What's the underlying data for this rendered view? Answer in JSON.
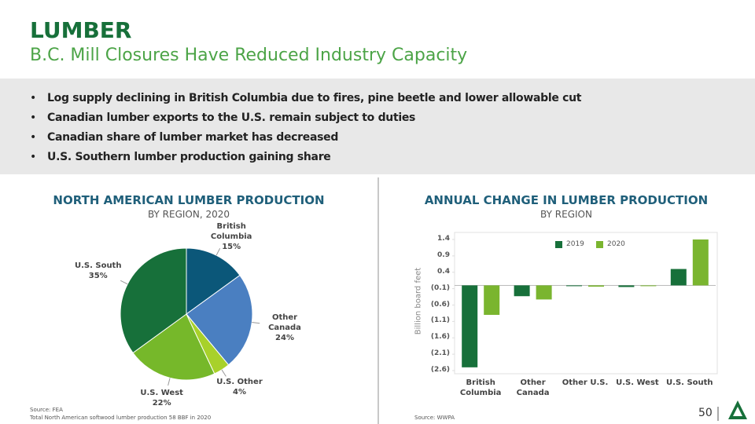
{
  "header": {
    "title": "LUMBER",
    "subtitle": "B.C. Mill Closures Have Reduced Industry Capacity",
    "bullets": [
      "Log supply declining in British Columbia due to fires, pine beetle and lower allowable cut",
      "Canadian lumber exports to the U.S. remain subject to duties",
      "Canadian share of lumber market has decreased",
      "U.S. Southern lumber production gaining share"
    ]
  },
  "chart_data": [
    {
      "type": "pie",
      "title": "NORTH AMERICAN LUMBER PRODUCTION",
      "subtitle": "BY REGION, 2020",
      "categories": [
        "British Columbia",
        "Other Canada",
        "U.S. Other",
        "U.S. West",
        "U.S. South"
      ],
      "values": [
        15,
        24,
        4,
        22,
        35
      ],
      "value_labels": [
        "15%",
        "24%",
        "4%",
        "22%",
        "35%"
      ],
      "colors": [
        "#0b5779",
        "#4a7fc1",
        "#a8d12a",
        "#76b82a",
        "#17703a"
      ]
    },
    {
      "type": "bar",
      "title": "ANNUAL CHANGE IN LUMBER PRODUCTION",
      "subtitle": "BY REGION",
      "y_label": "Billion board feet",
      "categories": [
        "British Columbia",
        "Other Canada",
        "Other U.S.",
        "U.S. West",
        "U.S. South"
      ],
      "series": [
        {
          "name": "2019",
          "color": "#17703a",
          "values": [
            -2.5,
            -0.33,
            0,
            -0.05,
            0.5
          ]
        },
        {
          "name": "2020",
          "color": "#7ab52f",
          "values": [
            -0.9,
            -0.43,
            -0.04,
            0,
            1.4
          ]
        }
      ],
      "ylim": [
        -2.6,
        1.4
      ],
      "yticks": [
        1.4,
        0.9,
        0.4,
        {
          "value": -0.1,
          "label": "(0.1)"
        },
        {
          "value": -0.6,
          "label": "(0.6)"
        },
        {
          "value": -1.1,
          "label": "(1.1)"
        },
        {
          "value": -1.6,
          "label": "(1.6)"
        },
        {
          "value": -2.1,
          "label": "(2.1)"
        },
        {
          "value": -2.6,
          "label": "(2.6)"
        }
      ]
    }
  ],
  "footer": {
    "left_sources": [
      "Source: FEA",
      "Total North American softwood lumber production 58 BBF in 2020"
    ],
    "right_source": "Source: WWPA",
    "page_number": 50
  }
}
